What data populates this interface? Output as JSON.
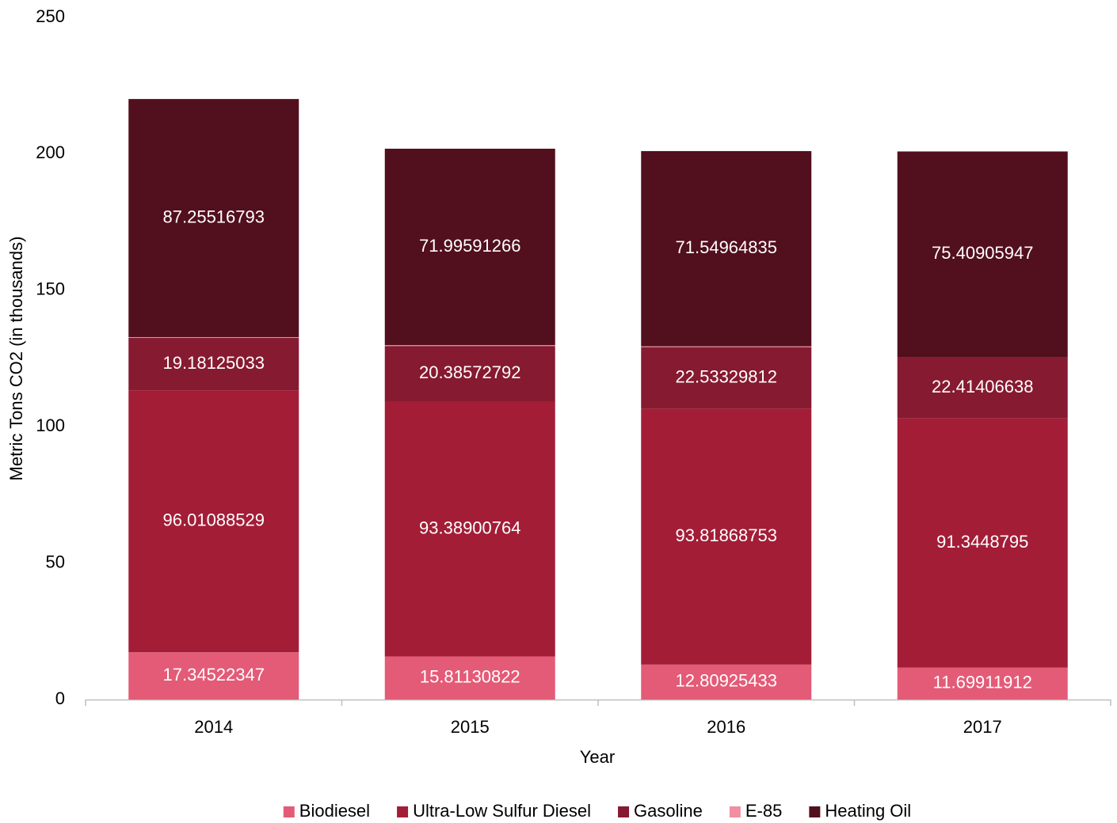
{
  "chart_data": {
    "type": "stacked_bar",
    "x_label": "Year",
    "y_label": "Metric Tons CO2 (in thousands)",
    "categories": [
      "2014",
      "2015",
      "2016",
      "2017"
    ],
    "series": [
      {
        "name": "Biodiesel",
        "color": "#e35b77",
        "show_labels": true,
        "values": [
          17.34522347,
          15.81130822,
          12.80925433,
          11.69911912
        ]
      },
      {
        "name": "Ultra-Low Sulfur Diesel",
        "color": "#a31d37",
        "show_labels": true,
        "values": [
          96.01088529,
          93.38900764,
          93.81868753,
          91.3448795
        ]
      },
      {
        "name": "Gasoline",
        "color": "#861a30",
        "show_labels": true,
        "values": [
          19.18125033,
          20.38572792,
          22.53329812,
          22.41406638
        ]
      },
      {
        "name": "E-85",
        "color": "#f08fa0",
        "show_labels": false,
        "values": [
          0.3,
          0.3,
          0.3,
          0
        ]
      },
      {
        "name": "Heating Oil",
        "color": "#520f1d",
        "show_labels": true,
        "values": [
          87.25516793,
          71.99591266,
          71.54964835,
          75.40905947
        ]
      }
    ],
    "ylim": [
      0,
      250
    ],
    "yticks": [
      0,
      50,
      100,
      150,
      200,
      250
    ],
    "grid": false,
    "legend": "bottom"
  }
}
